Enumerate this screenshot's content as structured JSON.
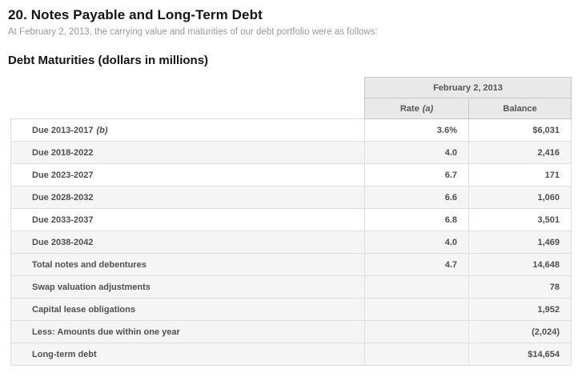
{
  "page": {
    "title": "20. Notes Payable and Long-Term Debt",
    "subtitle": "At February 2, 2013, the carrying value and maturities of our debt portfolio were as follows:",
    "section_heading": "Debt Maturities (dollars in millions)"
  },
  "table": {
    "column_group_header": "February 2, 2013",
    "columns": [
      {
        "label": "Rate",
        "note": "(a)"
      },
      {
        "label": "Balance",
        "note": ""
      }
    ],
    "rows": [
      {
        "label": "Due 2013-2017",
        "note": "(b)",
        "rate": "3.6%",
        "balance": "$6,031",
        "shaded": false
      },
      {
        "label": "Due 2018-2022",
        "note": "",
        "rate": "4.0",
        "balance": "2,416",
        "shaded": true
      },
      {
        "label": "Due 2023-2027",
        "note": "",
        "rate": "6.7",
        "balance": "171",
        "shaded": false
      },
      {
        "label": "Due 2028-2032",
        "note": "",
        "rate": "6.6",
        "balance": "1,060",
        "shaded": true
      },
      {
        "label": "Due 2033-2037",
        "note": "",
        "rate": "6.8",
        "balance": "3,501",
        "shaded": false
      },
      {
        "label": "Due 2038-2042",
        "note": "",
        "rate": "4.0",
        "balance": "1,469",
        "shaded": true
      },
      {
        "label": "Total notes and debentures",
        "note": "",
        "rate": "4.7",
        "balance": "14,648",
        "shaded": true
      },
      {
        "label": "Swap valuation adjustments",
        "note": "",
        "rate": "",
        "balance": "78",
        "shaded": true
      },
      {
        "label": "Capital lease obligations",
        "note": "",
        "rate": "",
        "balance": "1,952",
        "shaded": true
      },
      {
        "label": "Less: Amounts due within one year",
        "note": "",
        "rate": "",
        "balance": "(2,024)",
        "shaded": true
      },
      {
        "label": "Long-term debt",
        "note": "",
        "rate": "",
        "balance": "$14,654",
        "shaded": true
      }
    ],
    "colors": {
      "header_bg": "#e9e9e9",
      "header_border": "#c5c5c5",
      "stripe_bg": "#f5f5f5",
      "row_border": "#dedede",
      "text": "#4f4f4f",
      "title_text": "#141414",
      "subtitle_text": "#999999"
    }
  }
}
